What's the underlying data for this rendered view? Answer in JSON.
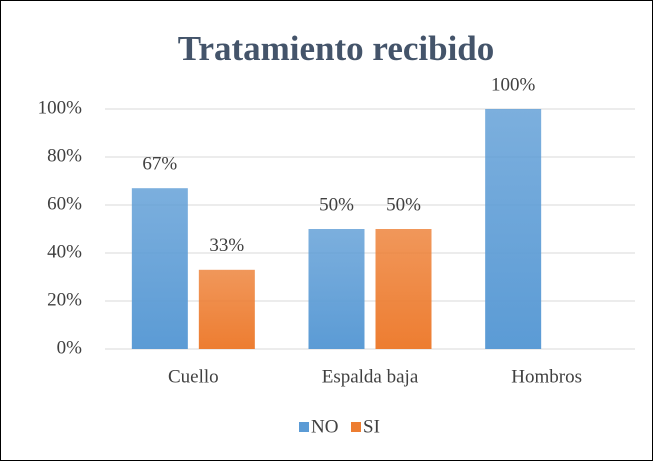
{
  "chart_data": {
    "type": "bar",
    "title": "Tratamiento recibido",
    "categories": [
      "Cuello",
      "Espalda baja",
      "Hombros"
    ],
    "series": [
      {
        "name": "NO",
        "color": "#5b9bd5",
        "values": [
          67,
          50,
          100
        ],
        "value_labels": [
          "67%",
          "50%",
          "100%"
        ]
      },
      {
        "name": "SI",
        "color": "#ed7d31",
        "values": [
          33,
          50,
          null
        ],
        "value_labels": [
          "33%",
          "50%",
          null
        ]
      }
    ],
    "ylim": [
      0,
      100
    ],
    "yticks": [
      {
        "value": 0,
        "label": "0%"
      },
      {
        "value": 20,
        "label": "20%"
      },
      {
        "value": 40,
        "label": "40%"
      },
      {
        "value": 60,
        "label": "60%"
      },
      {
        "value": 80,
        "label": "80%"
      },
      {
        "value": 100,
        "label": "100%"
      }
    ],
    "grid": true,
    "legend": "bottom"
  }
}
